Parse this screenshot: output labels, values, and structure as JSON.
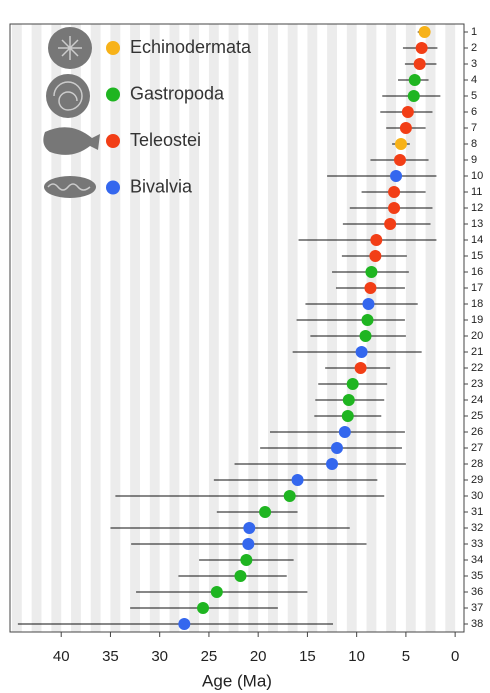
{
  "chart_data": {
    "type": "dot-range",
    "x_label": "Age (Ma)",
    "xlim": [
      45.2,
      -0.9
    ],
    "xticks": [
      40,
      35,
      30,
      25,
      20,
      15,
      10,
      5,
      0
    ],
    "series": [
      {
        "name": "Echinodermata",
        "color": "#f7b219"
      },
      {
        "name": "Gastropoda",
        "color": "#1fb521"
      },
      {
        "name": "Teleostei",
        "color": "#f23e16"
      },
      {
        "name": "Bivalvia",
        "color": "#3467ee"
      }
    ],
    "categories": [
      "1",
      "2",
      "3",
      "4",
      "5",
      "6",
      "7",
      "8",
      "9",
      "10",
      "11",
      "12",
      "13",
      "14",
      "15",
      "16",
      "17",
      "18",
      "19",
      "20",
      "21",
      "22",
      "23",
      "24",
      "25",
      "26",
      "27",
      "28",
      "29",
      "30",
      "31",
      "32",
      "33",
      "34",
      "35",
      "36",
      "37",
      "38"
    ],
    "groups": [
      0,
      2,
      2,
      1,
      1,
      2,
      2,
      0,
      2,
      3,
      2,
      2,
      2,
      2,
      2,
      1,
      2,
      3,
      1,
      1,
      3,
      2,
      1,
      1,
      1,
      3,
      3,
      3,
      3,
      1,
      1,
      3,
      3,
      1,
      1,
      1,
      1,
      3
    ],
    "values": [
      3.1,
      3.4,
      3.6,
      4.1,
      4.2,
      4.8,
      5.0,
      5.5,
      5.6,
      6.0,
      6.2,
      6.2,
      6.6,
      8.0,
      8.1,
      8.5,
      8.6,
      8.8,
      8.9,
      9.1,
      9.5,
      9.6,
      10.4,
      10.8,
      10.9,
      11.2,
      12.0,
      12.5,
      16.0,
      16.8,
      19.3,
      20.9,
      21.0,
      21.2,
      21.8,
      24.2,
      25.6,
      27.5
    ],
    "min": [
      2.5,
      1.8,
      1.9,
      2.7,
      1.5,
      2.3,
      3.0,
      4.6,
      2.7,
      1.9,
      3.0,
      2.3,
      2.5,
      1.9,
      4.9,
      4.7,
      5.1,
      3.8,
      5.1,
      5.0,
      3.4,
      6.6,
      6.9,
      7.2,
      7.5,
      5.1,
      5.4,
      5.0,
      7.9,
      7.2,
      16.0,
      10.7,
      9.0,
      16.4,
      17.1,
      15.0,
      18.0,
      12.4
    ],
    "max": [
      3.8,
      5.3,
      5.1,
      5.8,
      7.4,
      7.6,
      7.0,
      6.4,
      8.6,
      13.0,
      9.5,
      10.7,
      11.4,
      15.9,
      11.5,
      12.5,
      12.1,
      15.2,
      16.1,
      14.7,
      16.5,
      13.2,
      13.9,
      14.2,
      14.3,
      18.8,
      19.8,
      22.4,
      24.5,
      34.5,
      24.2,
      35.0,
      32.9,
      26.0,
      28.1,
      32.4,
      33.0,
      44.4
    ]
  }
}
